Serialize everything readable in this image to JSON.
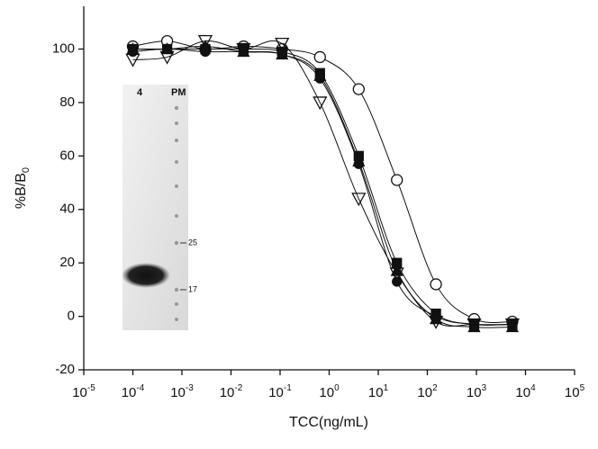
{
  "chart_data": {
    "type": "line",
    "x_label": "TCC(ng/mL)",
    "y_label": "%B/B0",
    "log_x": true,
    "x": [
      0.0001,
      0.0005,
      0.003,
      0.018,
      0.11,
      0.65,
      4,
      24,
      150,
      900,
      5400
    ],
    "series": [
      {
        "name": "open-circle",
        "marker": "circle-open",
        "color": "#111111",
        "values": [
          101,
          103,
          100,
          101,
          100,
          97,
          85,
          51,
          12,
          -1,
          -2
        ]
      },
      {
        "name": "open-triangle",
        "marker": "triangle-down-open",
        "color": "#111111",
        "values": [
          96,
          97,
          103,
          100,
          102,
          80,
          44,
          16,
          -2,
          -3,
          -3
        ]
      },
      {
        "name": "filled-square",
        "marker": "square",
        "color": "#111111",
        "values": [
          100,
          100,
          100,
          100,
          99,
          91,
          60,
          20,
          1,
          -3,
          -3
        ]
      },
      {
        "name": "filled-circle",
        "marker": "circle",
        "color": "#111111",
        "values": [
          99,
          100,
          99,
          99,
          98,
          89,
          57,
          13,
          0,
          -3,
          -3
        ]
      },
      {
        "name": "filled-triangle",
        "marker": "triangle",
        "color": "#111111",
        "values": [
          100,
          100,
          101,
          99,
          98,
          90,
          58,
          17,
          -1,
          -4,
          -4
        ]
      }
    ],
    "xlim": [
      1e-05,
      100000
    ],
    "xticks": [
      {
        "value": 1e-05,
        "label": "10-5"
      },
      {
        "value": 0.0001,
        "label": "10-4"
      },
      {
        "value": 0.001,
        "label": "10-3"
      },
      {
        "value": 0.01,
        "label": "10-2"
      },
      {
        "value": 0.1,
        "label": "10-1"
      },
      {
        "value": 1,
        "label": "100"
      },
      {
        "value": 10,
        "label": "101"
      },
      {
        "value": 100,
        "label": "102"
      },
      {
        "value": 1000,
        "label": "103"
      },
      {
        "value": 10000,
        "label": "104"
      },
      {
        "value": 100000,
        "label": "105"
      }
    ],
    "ylim": [
      -20,
      116
    ],
    "yticks": [
      -20,
      0,
      20,
      40,
      60,
      80,
      100
    ],
    "annotations": [
      "4",
      "PM",
      "25",
      "17"
    ]
  }
}
